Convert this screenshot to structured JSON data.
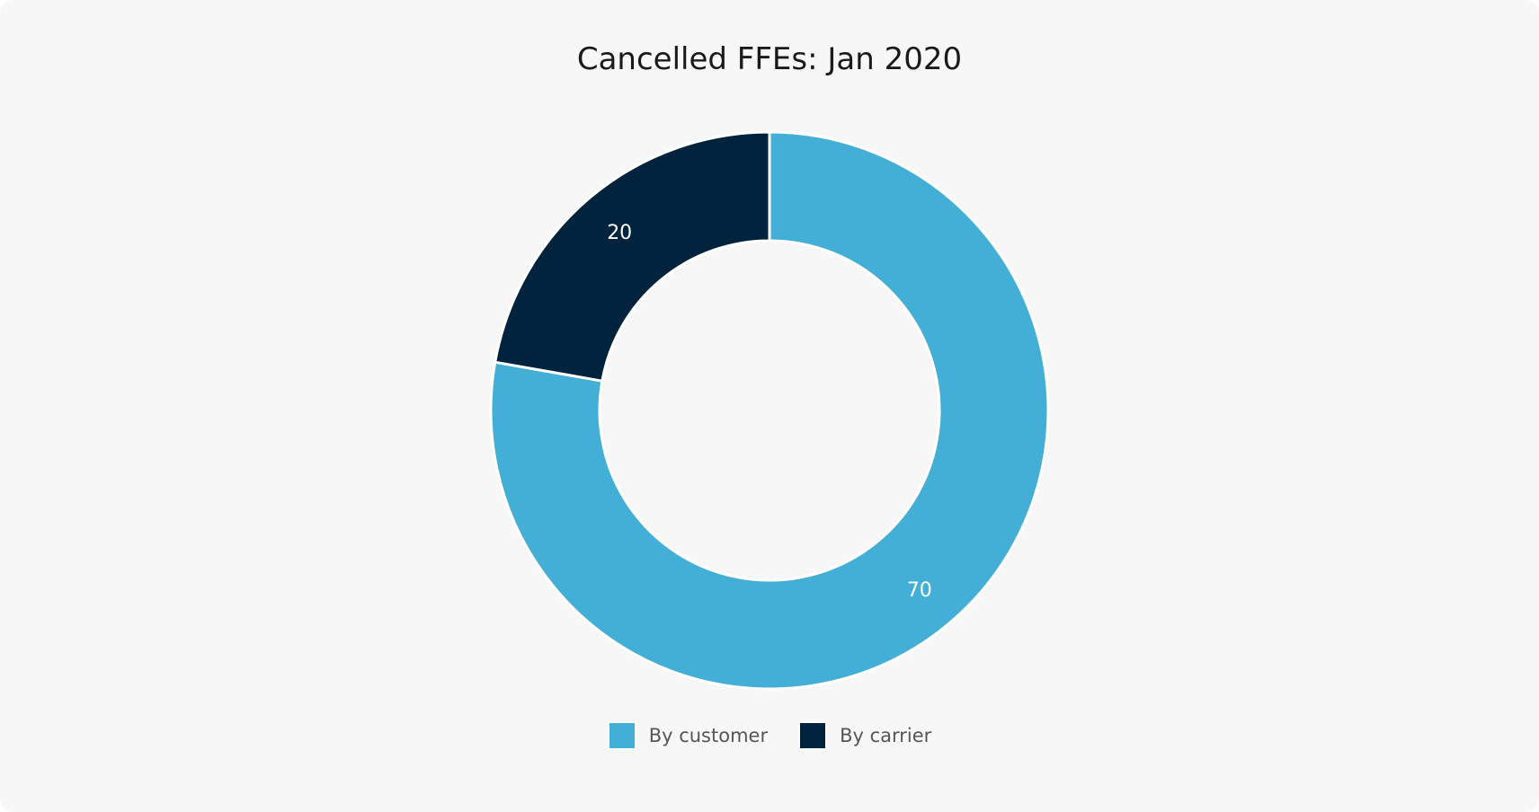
{
  "chart_data": {
    "type": "pie",
    "variant": "donut",
    "title": "Cancelled FFEs: Jan 2020",
    "series": [
      {
        "name": "By customer",
        "value": 70,
        "color": "#43afd6"
      },
      {
        "name": "By carrier",
        "value": 20,
        "color": "#00233d"
      }
    ],
    "data_labels": true,
    "legend": "bottom"
  }
}
